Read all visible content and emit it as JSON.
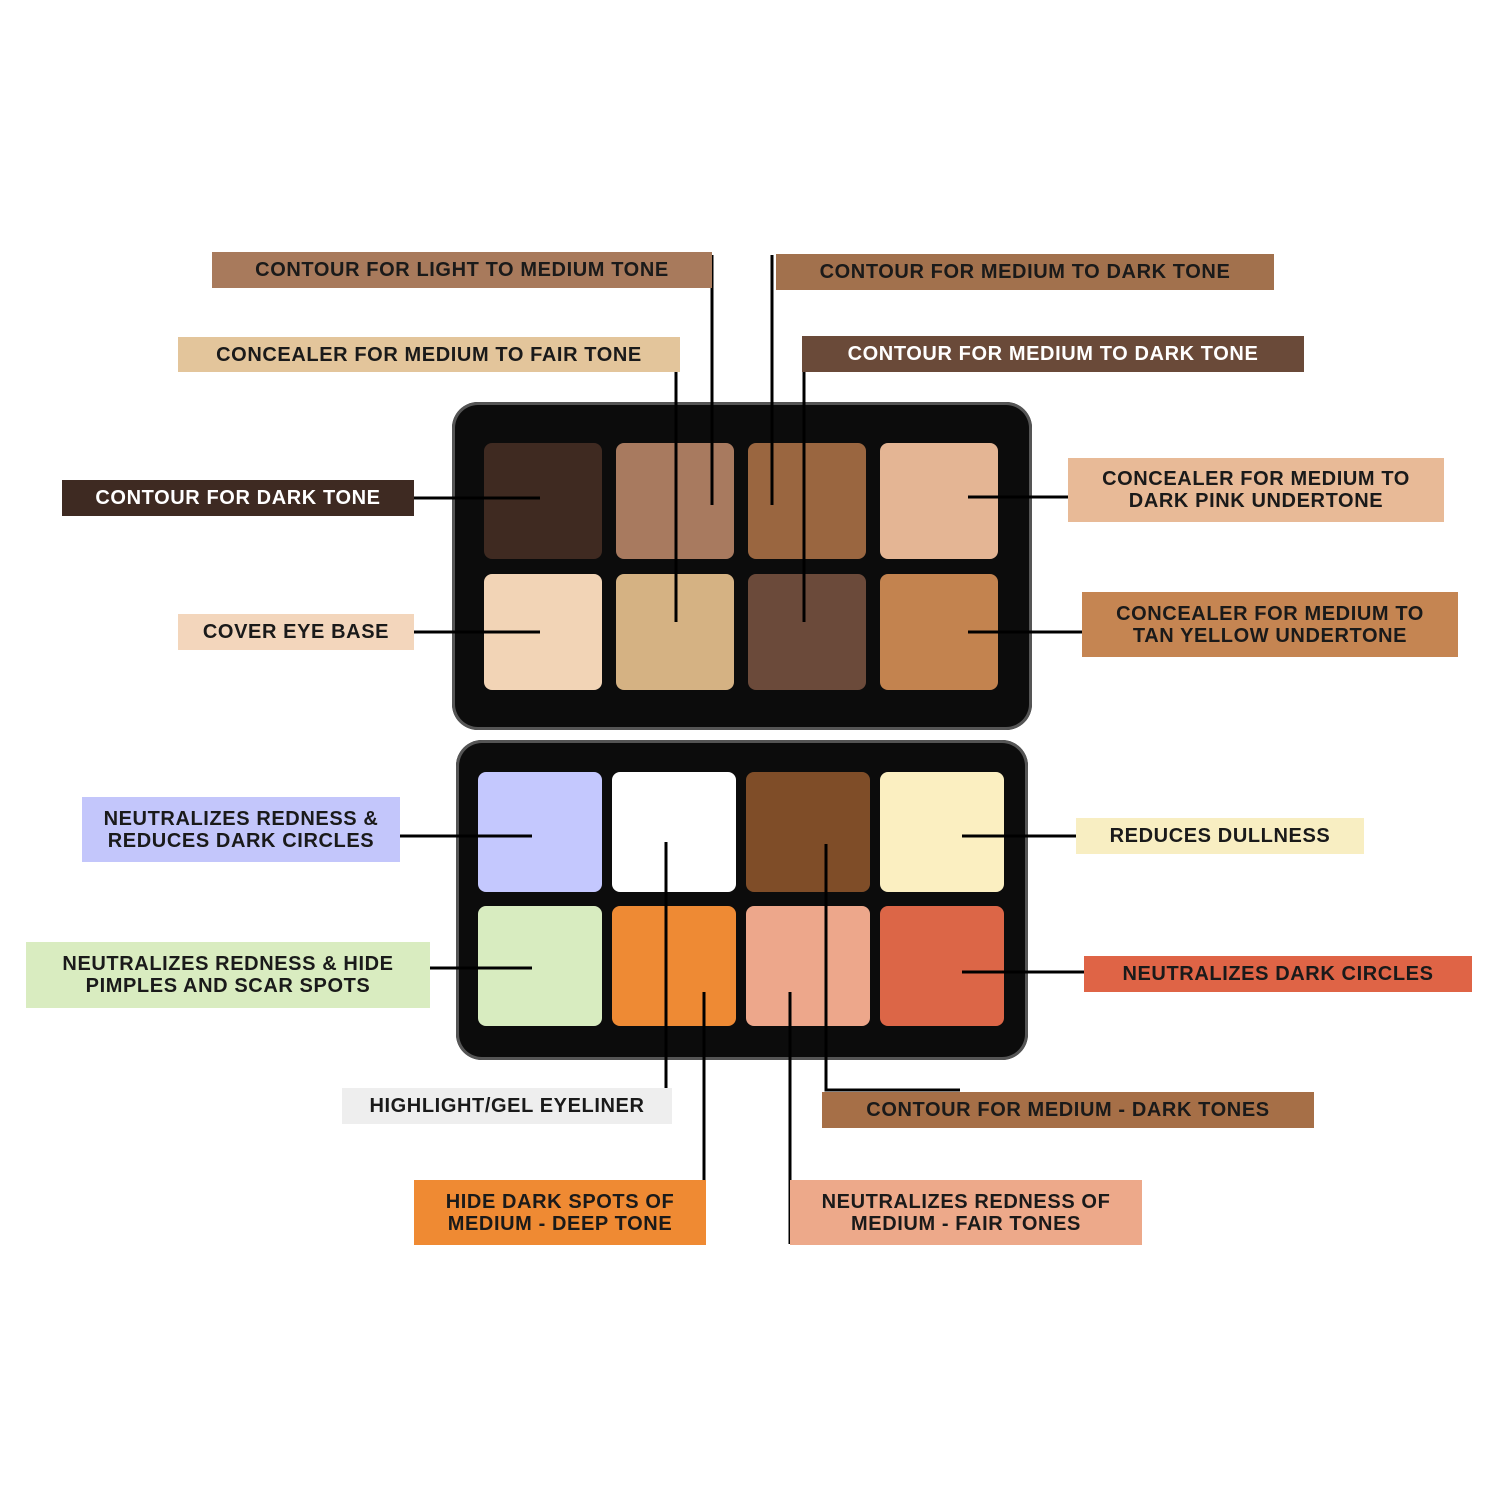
{
  "labels": [
    {
      "text": "CONTOUR FOR LIGHT TO MEDIUM TONE",
      "bg": "#a87a5c"
    },
    {
      "text": "CONTOUR FOR MEDIUM TO DARK TONE",
      "bg": "#a2714d"
    },
    {
      "text": "CONCEALER FOR MEDIUM TO FAIR TONE",
      "bg": "#e3c59b"
    },
    {
      "text": "CONTOUR FOR MEDIUM TO DARK TONE",
      "bg": "#6a4a39"
    },
    {
      "text": "CONTOUR FOR DARK TONE",
      "bg": "#3e2a22"
    },
    {
      "text": "CONCEALER FOR MEDIUM TO DARK PINK UNDERTONE",
      "bg": "#e8ba97"
    },
    {
      "text": "COVER EYE BASE",
      "bg": "#f3d6bc"
    },
    {
      "text": "CONCEALER FOR MEDIUM TO TAN YELLOW UNDERTONE",
      "bg": "#c58552"
    },
    {
      "text": "NEUTRALIZES REDNESS & REDUCES DARK CIRCLES",
      "bg": "#c3c6fb"
    },
    {
      "text": "REDUCES DULLNESS",
      "bg": "#f8eec2"
    },
    {
      "text": "NEUTRALIZES REDNESS & HIDE PIMPLES AND SCAR SPOTS",
      "bg": "#d9ecc0"
    },
    {
      "text": "NEUTRALIZES DARK CIRCLES",
      "bg": "#df6446"
    },
    {
      "text": "HIGHLIGHT/GEL EYELINER",
      "bg": "#eeeeee"
    },
    {
      "text": "CONTOUR FOR MEDIUM - DARK TONES",
      "bg": "#a66f47"
    },
    {
      "text": "HIDE DARK SPOTS OF MEDIUM - DEEP TONE",
      "bg": "#ef8a33"
    },
    {
      "text": "NEUTRALIZES REDNESS OF MEDIUM - FAIR TONES",
      "bg": "#eda98a"
    }
  ],
  "palette": {
    "top_pans": [
      "#3f2a21",
      "#a87a5f",
      "#9a6640",
      "#e4b594",
      "#f2d4b6",
      "#d5b283",
      "#6b4a3a",
      "#c3834f"
    ],
    "bottom_pans": [
      "#c4c8fe",
      "#ffffff",
      "#7f4d28",
      "#fbefc1",
      "#d8ecc0",
      "#ee8a34",
      "#eda78b",
      "#dc6647"
    ]
  }
}
